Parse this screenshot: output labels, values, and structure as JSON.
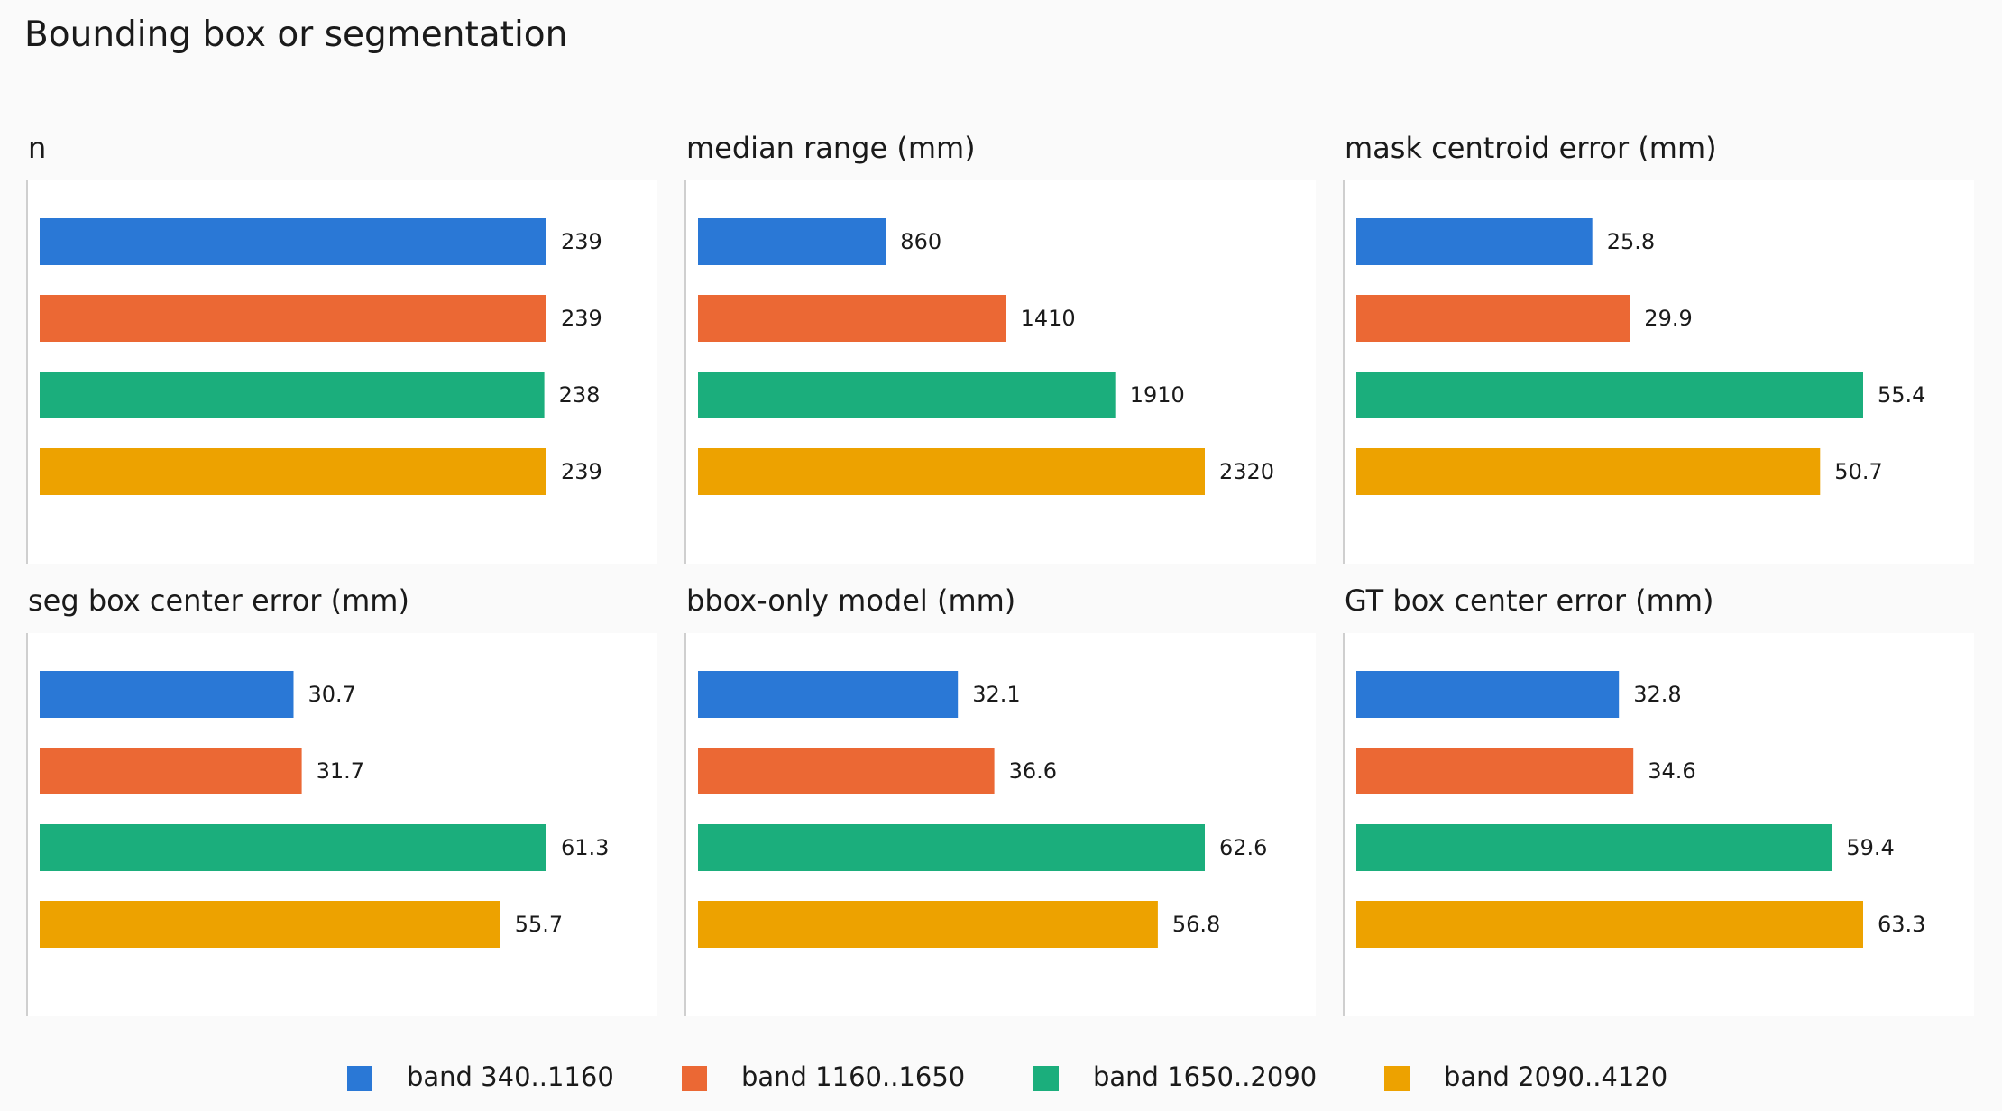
{
  "figure": {
    "title": "Bounding box or segmentation"
  },
  "legend": [
    {
      "label": "band 340..1160",
      "color": "#2a78d6"
    },
    {
      "label": "band 1160..1650",
      "color": "#eb6834"
    },
    {
      "label": "band 1650..2090",
      "color": "#1bae7c"
    },
    {
      "label": "band 2090..4120",
      "color": "#eda200"
    }
  ],
  "chart_data": [
    {
      "type": "bar",
      "orientation": "horizontal",
      "title": "n",
      "categories": [
        "band 340..1160",
        "band 1160..1650",
        "band 1650..2090",
        "band 2090..4120"
      ],
      "values": [
        239,
        239,
        238,
        239
      ],
      "labels": [
        "239",
        "239",
        "238",
        "239"
      ]
    },
    {
      "type": "bar",
      "orientation": "horizontal",
      "title": "median range (mm)",
      "categories": [
        "band 340..1160",
        "band 1160..1650",
        "band 1650..2090",
        "band 2090..4120"
      ],
      "values": [
        860,
        1410,
        1910,
        2320
      ],
      "labels": [
        "860",
        "1410",
        "1910",
        "2320"
      ]
    },
    {
      "type": "bar",
      "orientation": "horizontal",
      "title": "mask centroid error (mm)",
      "categories": [
        "band 340..1160",
        "band 1160..1650",
        "band 1650..2090",
        "band 2090..4120"
      ],
      "values": [
        25.8,
        29.9,
        55.4,
        50.7
      ],
      "labels": [
        "25.8",
        "29.9",
        "55.4",
        "50.7"
      ]
    },
    {
      "type": "bar",
      "orientation": "horizontal",
      "title": "seg box center error (mm)",
      "categories": [
        "band 340..1160",
        "band 1160..1650",
        "band 1650..2090",
        "band 2090..4120"
      ],
      "values": [
        30.7,
        31.7,
        61.3,
        55.7
      ],
      "labels": [
        "30.7",
        "31.7",
        "61.3",
        "55.7"
      ]
    },
    {
      "type": "bar",
      "orientation": "horizontal",
      "title": "bbox-only model (mm)",
      "categories": [
        "band 340..1160",
        "band 1160..1650",
        "band 1650..2090",
        "band 2090..4120"
      ],
      "values": [
        32.1,
        36.6,
        62.6,
        56.8
      ],
      "labels": [
        "32.1",
        "36.6",
        "62.6",
        "56.8"
      ]
    },
    {
      "type": "bar",
      "orientation": "horizontal",
      "title": "GT box center error (mm)",
      "categories": [
        "band 340..1160",
        "band 1160..1650",
        "band 1650..2090",
        "band 2090..4120"
      ],
      "values": [
        32.8,
        34.6,
        59.4,
        63.3
      ],
      "labels": [
        "32.8",
        "34.6",
        "59.4",
        "63.3"
      ]
    }
  ]
}
